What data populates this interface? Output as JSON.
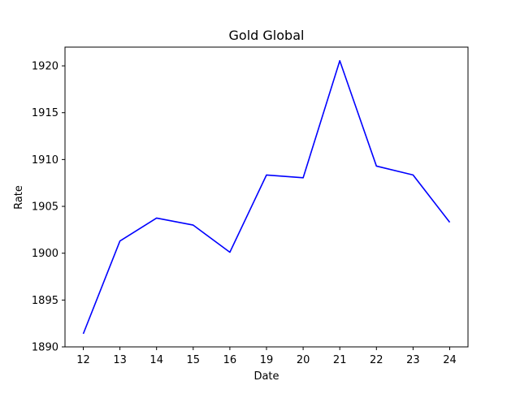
{
  "chart_data": {
    "type": "line",
    "title": "Gold Global",
    "xlabel": "Date",
    "ylabel": "Rate",
    "categories": [
      "12",
      "13",
      "14",
      "15",
      "16",
      "19",
      "20",
      "21",
      "22",
      "23",
      "24"
    ],
    "series": [
      {
        "values": [
          1891.4,
          1901.3,
          1903.75,
          1903.0,
          1900.1,
          1908.35,
          1908.05,
          1920.55,
          1909.3,
          1908.35,
          1903.3
        ],
        "color": "#0000ff"
      }
    ],
    "ylim": [
      1890,
      1922
    ],
    "yticks": [
      1890,
      1895,
      1900,
      1905,
      1910,
      1915,
      1920
    ],
    "grid": false,
    "legend": "none"
  }
}
